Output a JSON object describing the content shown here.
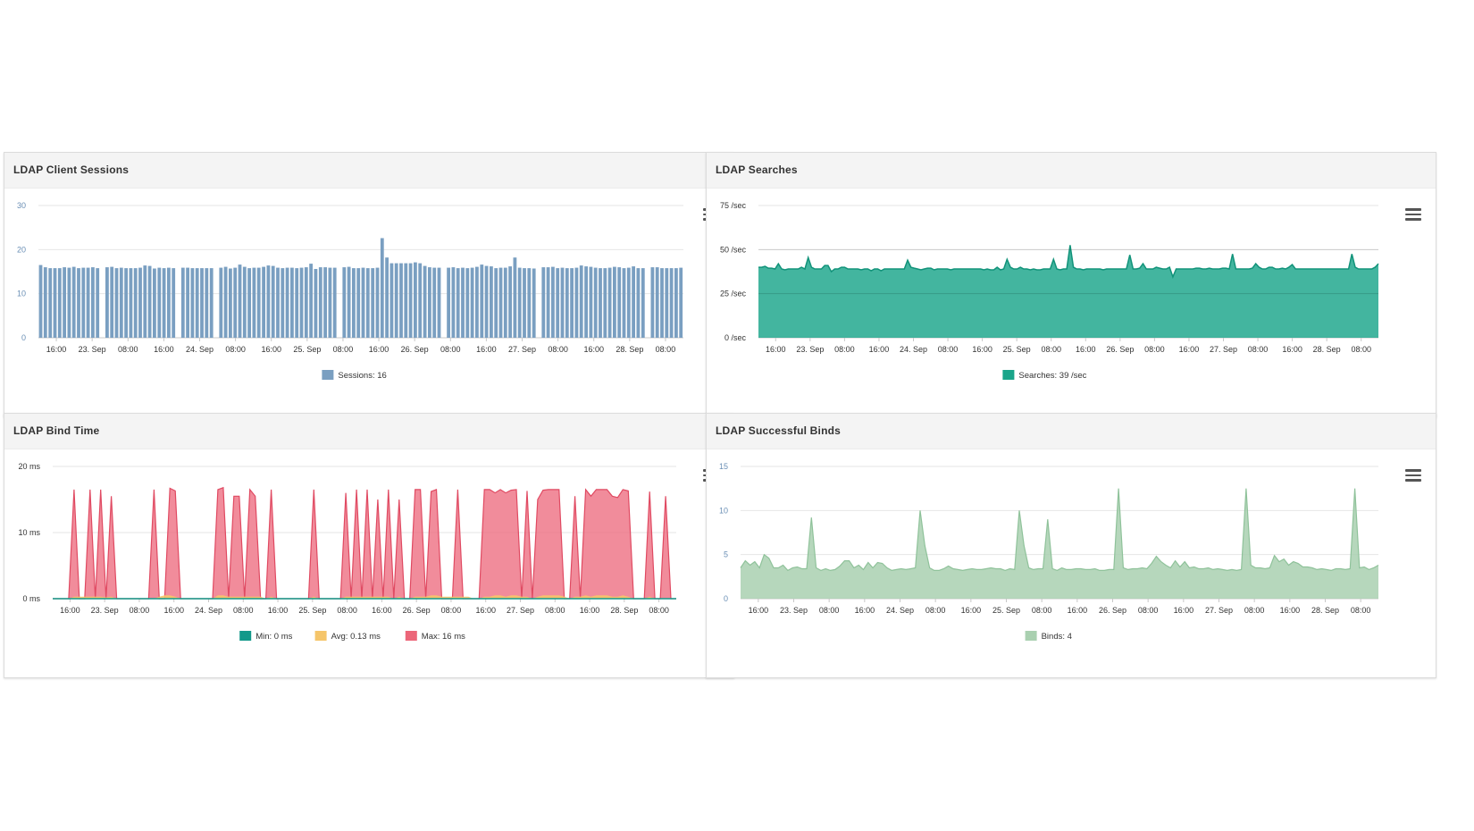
{
  "panels": {
    "sessions": {
      "title": "LDAP Client Sessions"
    },
    "searches": {
      "title": "LDAP Searches"
    },
    "bindtime": {
      "title": "LDAP Bind Time"
    },
    "binds": {
      "title": "LDAP Successful Binds"
    }
  },
  "colors": {
    "sessions": "#7a9fc1",
    "searches": "#1aa58a",
    "min": "#12998a",
    "avg": "#f5c56a",
    "max": "#ec6679",
    "binds": "#a9d0b0"
  },
  "x_tick_labels": [
    "16:00",
    "23. Sep",
    "08:00",
    "16:00",
    "24. Sep",
    "08:00",
    "16:00",
    "25. Sep",
    "08:00",
    "16:00",
    "26. Sep",
    "08:00",
    "16:00",
    "27. Sep",
    "08:00",
    "16:00",
    "28. Sep",
    "08:00"
  ],
  "chart_data": [
    {
      "id": "sessions",
      "type": "bar",
      "title": "LDAP Client Sessions",
      "ylim": [
        0,
        30
      ],
      "y_ticks": [
        "0",
        "10",
        "20",
        "30"
      ],
      "legend": "Sessions: 16",
      "series": [
        {
          "name": "Sessions",
          "values": [
            16.5,
            16,
            15.8,
            15.8,
            15.8,
            16,
            15.9,
            16.1,
            15.8,
            15.9,
            15.9,
            16,
            15.8,
            null,
            16,
            16.1,
            15.8,
            15.9,
            15.8,
            15.8,
            15.8,
            15.9,
            16.4,
            16.3,
            15.7,
            15.9,
            15.8,
            15.9,
            15.8,
            null,
            15.9,
            15.9,
            15.8,
            15.8,
            15.8,
            15.8,
            15.8,
            null,
            15.9,
            16.1,
            15.7,
            15.9,
            16.6,
            16.1,
            15.8,
            15.9,
            15.9,
            16.1,
            16.4,
            16.3,
            15.9,
            15.8,
            15.9,
            15.9,
            15.8,
            15.9,
            16,
            16.8,
            15.6,
            16,
            16,
            15.9,
            15.9,
            null,
            16,
            16.1,
            15.8,
            15.8,
            15.9,
            15.8,
            15.8,
            15.9,
            22.6,
            18.2,
            16.9,
            16.9,
            16.9,
            16.9,
            16.9,
            17.1,
            16.9,
            16.3,
            16,
            15.9,
            15.9,
            null,
            15.9,
            16,
            15.8,
            15.9,
            15.8,
            15.9,
            16.1,
            16.6,
            16.3,
            16.2,
            15.8,
            15.9,
            15.9,
            16.2,
            18.2,
            15.9,
            15.8,
            15.8,
            15.7,
            null,
            16,
            16,
            16.1,
            15.8,
            15.9,
            15.8,
            15.8,
            15.9,
            16.4,
            16.2,
            16.1,
            15.9,
            15.8,
            15.8,
            15.9,
            16.1,
            16,
            15.8,
            15.9,
            16.2,
            15.8,
            15.8,
            null,
            16,
            16,
            15.8,
            15.8,
            15.8,
            15.8,
            15.9
          ]
        }
      ]
    },
    {
      "id": "searches",
      "type": "area",
      "title": "LDAP Searches",
      "ylim": [
        0,
        75
      ],
      "y_ticks": [
        "0 /sec",
        "25 /sec",
        "50 /sec",
        "75 /sec"
      ],
      "legend": "Searches: 39 /sec",
      "series": [
        {
          "name": "Searches",
          "values": [
            40,
            40,
            40.5,
            39.5,
            39.5,
            39,
            42,
            39,
            38.5,
            39,
            39,
            39,
            39,
            40,
            39,
            45.5,
            40,
            39,
            39,
            39,
            41,
            41,
            37.5,
            39,
            39,
            40,
            40,
            39,
            39,
            39,
            39,
            38.5,
            39,
            39,
            38,
            39,
            39,
            38,
            39,
            39,
            39,
            39,
            39,
            39,
            39,
            44,
            40,
            39.5,
            39,
            38.5,
            39,
            39.5,
            39.5,
            38.5,
            39,
            39,
            39,
            39,
            38.5,
            39,
            39,
            39,
            39,
            39,
            39,
            39,
            39,
            39,
            38.5,
            39,
            38.5,
            38.5,
            40,
            38.5,
            39,
            44.5,
            40,
            39,
            39,
            40,
            39,
            39,
            38.5,
            39,
            38.5,
            38.5,
            39,
            39,
            39,
            44.5,
            39,
            38.5,
            39,
            39,
            52.5,
            40,
            39,
            39,
            38.5,
            39,
            39,
            39,
            39,
            39,
            38.5,
            39,
            39,
            39,
            39,
            39,
            39,
            39,
            47,
            39,
            39,
            39.5,
            42,
            39,
            39,
            39,
            40,
            39.5,
            39,
            39,
            40,
            34.5,
            39,
            39,
            39,
            39,
            39,
            39,
            39.5,
            39.5,
            39,
            39,
            39.5,
            39,
            39,
            39,
            39.5,
            39.5,
            39,
            47.5,
            39,
            39,
            39,
            39,
            39,
            39.5,
            42,
            40,
            39,
            39,
            40,
            40,
            39,
            39,
            39.5,
            39,
            40,
            41.5,
            39,
            39,
            39,
            39,
            39,
            39,
            39,
            39,
            39,
            39,
            39,
            39,
            39,
            39,
            39,
            39,
            39,
            47.5,
            40,
            39,
            39,
            39,
            39,
            39,
            40,
            42
          ]
        }
      ]
    },
    {
      "id": "bindtime",
      "type": "area",
      "title": "LDAP Bind Time",
      "ylim": [
        0,
        20
      ],
      "y_ticks": [
        "0 ms",
        "10 ms",
        "20 ms"
      ],
      "legend_items": [
        "Min: 0 ms",
        "Avg: 0.13 ms",
        "Max: 16 ms"
      ],
      "series": [
        {
          "name": "Max",
          "values": [
            0,
            0,
            0,
            0,
            16.5,
            0,
            0,
            16.5,
            0,
            16.5,
            0,
            15.5,
            0,
            0,
            0,
            0,
            0,
            0,
            0,
            16.5,
            0,
            0,
            16.7,
            16.3,
            0,
            0,
            0,
            0,
            0,
            0,
            0,
            16.5,
            16.8,
            0,
            15.5,
            15.5,
            0,
            16.5,
            15.5,
            0,
            0,
            16.5,
            0,
            0,
            0,
            0,
            0,
            0,
            0,
            16.5,
            0,
            0,
            0,
            0,
            0,
            16,
            0,
            16.5,
            0,
            16.5,
            0,
            15,
            0,
            16.5,
            0,
            15,
            0,
            0,
            16.5,
            16.5,
            0,
            16.2,
            16.5,
            0,
            0,
            0,
            16.5,
            0,
            0,
            0,
            0,
            16.5,
            16.5,
            16,
            16.5,
            16,
            16.4,
            16.5,
            0,
            16.3,
            0,
            15,
            16.4,
            16.5,
            16.5,
            16.5,
            0,
            0,
            15.5,
            0,
            16.5,
            15.5,
            16.5,
            16.5,
            16.5,
            15.5,
            15.3,
            16.5,
            16.3,
            0,
            0,
            0,
            16.2,
            0,
            0,
            15.5,
            0,
            0
          ]
        },
        {
          "name": "Avg",
          "values": [
            0,
            0,
            0,
            0,
            0.3,
            0.3,
            0.3,
            0.3,
            0.3,
            0.3,
            0.2,
            0.3,
            0,
            0,
            0,
            0,
            0,
            0,
            0,
            0,
            0.3,
            0.5,
            0.5,
            0.3,
            0,
            0,
            0,
            0,
            0,
            0,
            0,
            0.5,
            0.5,
            0.3,
            0.3,
            0.3,
            0.3,
            0.3,
            0.3,
            0.3,
            0,
            0.3,
            0,
            0,
            0,
            0,
            0,
            0,
            0,
            0.3,
            0,
            0,
            0,
            0,
            0,
            0.3,
            0.3,
            0.3,
            0.3,
            0.3,
            0.3,
            0.3,
            0.3,
            0.3,
            0,
            0.3,
            0,
            0,
            0.3,
            0.3,
            0.3,
            0.5,
            0.5,
            0.3,
            0.3,
            0.3,
            0.3,
            0.3,
            0.3,
            0,
            0,
            0.3,
            0.3,
            0.5,
            0.5,
            0.3,
            0.5,
            0.5,
            0.3,
            0.3,
            0,
            0.3,
            0.5,
            0.5,
            0.5,
            0.5,
            0.3,
            0,
            0.3,
            0.3,
            0.5,
            0.3,
            0.5,
            0.5,
            0.5,
            0.3,
            0.3,
            0.5,
            0.3,
            0,
            0,
            0,
            0.3,
            0,
            0,
            0,
            0,
            0
          ]
        },
        {
          "name": "Min",
          "values": [
            0,
            0,
            0,
            0,
            0,
            0,
            0,
            0,
            0,
            0,
            0,
            0,
            0,
            0,
            0,
            0,
            0,
            0,
            0,
            0,
            0,
            0,
            0,
            0,
            0,
            0,
            0,
            0,
            0,
            0,
            0,
            0,
            0,
            0,
            0,
            0,
            0,
            0,
            0,
            0,
            0,
            0,
            0,
            0,
            0,
            0,
            0,
            0,
            0,
            0,
            0,
            0,
            0,
            0,
            0,
            0,
            0,
            0,
            0,
            0,
            0,
            0,
            0,
            0,
            0,
            0,
            0,
            0,
            0,
            0,
            0,
            0,
            0,
            0,
            0,
            0,
            0,
            0,
            0,
            0,
            0,
            0,
            0,
            0,
            0,
            0,
            0,
            0,
            0,
            0,
            0,
            0,
            0,
            0,
            0,
            0,
            0,
            0,
            0,
            0,
            0,
            0,
            0,
            0,
            0,
            0,
            0,
            0,
            0,
            0,
            0,
            0,
            0,
            0,
            0,
            0,
            0,
            0
          ]
        }
      ]
    },
    {
      "id": "binds",
      "type": "area",
      "title": "LDAP Successful Binds",
      "ylim": [
        0,
        15
      ],
      "y_ticks": [
        "0",
        "5",
        "10",
        "15"
      ],
      "legend": "Binds: 4",
      "series": [
        {
          "name": "Binds",
          "values": [
            3.5,
            4.3,
            3.8,
            4.2,
            3.5,
            5,
            4.6,
            3.5,
            3.5,
            3.8,
            3.2,
            3.5,
            3.6,
            3.4,
            3.4,
            9.2,
            3.5,
            3.2,
            3.4,
            3.2,
            3.3,
            3.7,
            4.3,
            4.3,
            3.5,
            3.8,
            3.3,
            4.1,
            3.5,
            4.1,
            4,
            3.5,
            3.2,
            3.3,
            3.4,
            3.3,
            3.4,
            3.5,
            10,
            6,
            3.5,
            3.2,
            3.2,
            3.4,
            3.7,
            3.4,
            3.3,
            3.2,
            3.3,
            3.4,
            3.3,
            3.3,
            3.4,
            3.5,
            3.4,
            3.4,
            3.2,
            3.4,
            3.3,
            10,
            6,
            3.5,
            3.3,
            3.4,
            3.4,
            9,
            3.4,
            3.2,
            3.5,
            3.3,
            3.3,
            3.4,
            3.4,
            3.3,
            3.3,
            3.4,
            3.2,
            3.2,
            3.3,
            3.3,
            12.5,
            3.5,
            3.3,
            3.4,
            3.4,
            3.5,
            3.4,
            4,
            4.8,
            4.2,
            3.8,
            3.5,
            4.3,
            3.6,
            4.2,
            3.5,
            3.6,
            3.4,
            3.4,
            3.5,
            3.3,
            3.4,
            3.3,
            3.2,
            3.3,
            3.2,
            3.3,
            12.5,
            3.8,
            3.5,
            3.5,
            3.4,
            3.5,
            4.9,
            4.2,
            4.5,
            3.8,
            4.2,
            4,
            3.6,
            3.6,
            3.5,
            3.3,
            3.4,
            3.3,
            3.2,
            3.4,
            3.4,
            3.3,
            3.4,
            12.5,
            3.5,
            3.6,
            3.3,
            3.5,
            3.8
          ]
        }
      ]
    }
  ]
}
